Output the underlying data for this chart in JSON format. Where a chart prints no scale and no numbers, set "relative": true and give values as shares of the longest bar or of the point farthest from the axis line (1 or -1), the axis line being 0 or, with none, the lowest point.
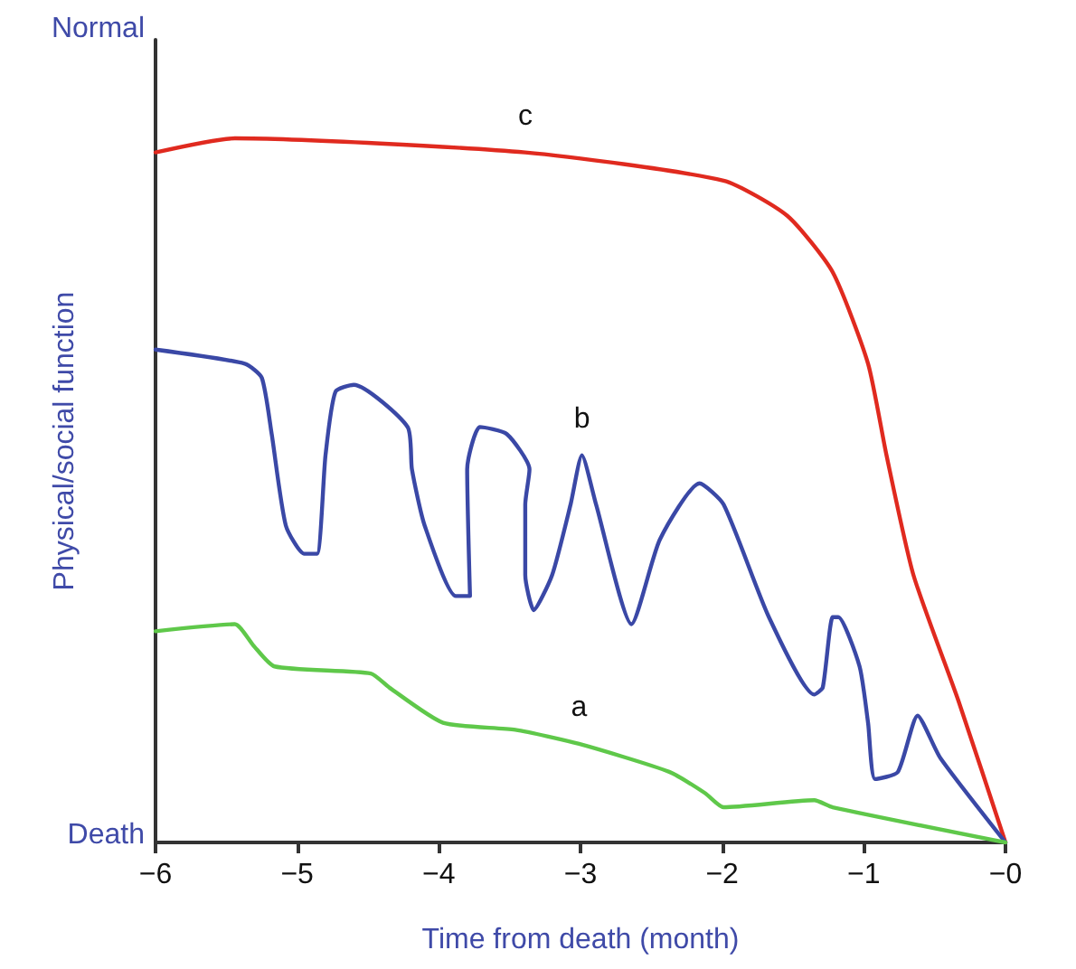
{
  "chart_data": {
    "type": "line",
    "relative": true,
    "xlabel": "Time from death (month)",
    "ylabel": "Physical/social function",
    "xlim": [
      -6,
      0
    ],
    "xticks": [
      {
        "value": -6,
        "label": "−6"
      },
      {
        "value": -5,
        "label": "−5"
      },
      {
        "value": -4,
        "label": "−4"
      },
      {
        "value": -3,
        "label": "−3"
      },
      {
        "value": -2,
        "label": "−2"
      },
      {
        "value": -1,
        "label": "−1"
      },
      {
        "value": 0,
        "label": "−0"
      }
    ],
    "grid": false,
    "marker": "none",
    "line_style": "solid",
    "series": [
      {
        "name": "c",
        "color": "#e02a1f",
        "x": [
          -6,
          -5.44,
          -3.39,
          -1.99,
          -1.54,
          -1.22,
          -0.97,
          -0.84,
          -0.65,
          -0.33,
          0
        ],
        "values": [
          0.98,
          1,
          0.98,
          0.94,
          0.89,
          0.81,
          0.68,
          0.55,
          0.38,
          0.2,
          0
        ]
      },
      {
        "name": "b",
        "color": "#3a48a6",
        "x": [
          -6,
          -5.37,
          -5.25,
          -5.18,
          -5.08,
          -4.95,
          -4.86,
          -4.8,
          -4.73,
          -4.6,
          -4.22,
          -4.19,
          -4.1,
          -3.88,
          -3.78,
          -3.8,
          -3.71,
          -3.52,
          -3.36,
          -3.39,
          -3.39,
          -3.33,
          -3.2,
          -3.07,
          -2.99,
          -2.89,
          -2.64,
          -2.44,
          -2.16,
          -1.99,
          -1.67,
          -1.35,
          -1.29,
          -1.22,
          -1.18,
          -1.03,
          -0.97,
          -0.92,
          -0.76,
          -0.62,
          -0.46,
          0
        ],
        "values": [
          0.7,
          0.68,
          0.66,
          0.58,
          0.45,
          0.41,
          0.41,
          0.55,
          0.64,
          0.65,
          0.59,
          0.53,
          0.45,
          0.35,
          0.35,
          0.53,
          0.59,
          0.58,
          0.53,
          0.48,
          0.38,
          0.33,
          0.38,
          0.48,
          0.55,
          0.48,
          0.31,
          0.43,
          0.51,
          0.48,
          0.32,
          0.21,
          0.22,
          0.32,
          0.32,
          0.25,
          0.17,
          0.09,
          0.1,
          0.18,
          0.12,
          0
        ]
      },
      {
        "name": "a",
        "color": "#5fc84a",
        "x": [
          -6,
          -5.44,
          -5.31,
          -5.16,
          -4.48,
          -4.35,
          -3.97,
          -3.46,
          -3.01,
          -2.37,
          -2.12,
          -1.99,
          -1.35,
          -1.22,
          0
        ],
        "values": [
          0.3,
          0.31,
          0.28,
          0.25,
          0.24,
          0.22,
          0.17,
          0.16,
          0.14,
          0.1,
          0.07,
          0.05,
          0.06,
          0.05,
          0
        ]
      }
    ],
    "annotations": [
      "Normal",
      "Death"
    ]
  }
}
